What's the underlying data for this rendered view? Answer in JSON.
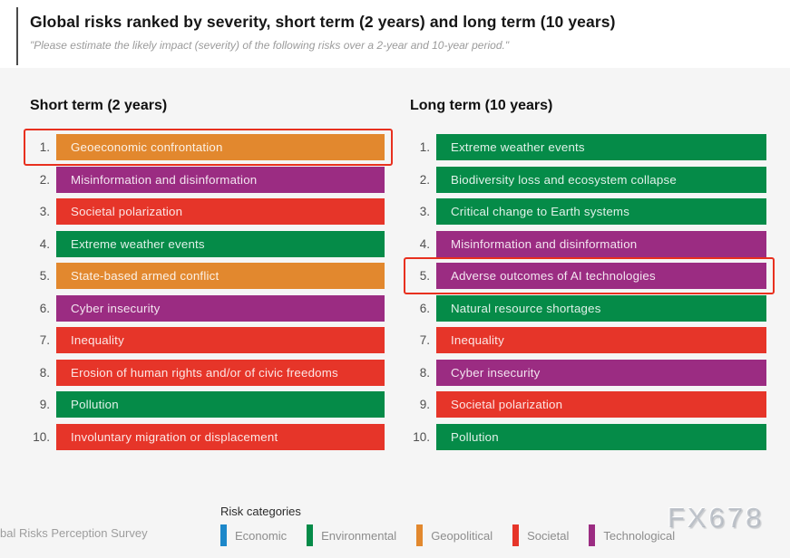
{
  "header": {
    "title": "Global risks ranked by severity, short term (2 years) and long term (10 years)",
    "subtitle": "\"Please estimate the likely impact (severity) of the following risks over a 2-year and 10-year period.\""
  },
  "colors": {
    "economic": "#1C87C9",
    "environmental": "#058B48",
    "geopolitical": "#E2882E",
    "societal": "#E63529",
    "technological": "#9B2C82",
    "highlight": "#E8301F",
    "panel_bg": "#F5F5F5"
  },
  "chart_data": {
    "type": "table",
    "title": "Global risks ranked by severity, short term (2 years) and long term (10 years)",
    "legend_position": "bottom",
    "columns": [
      {
        "title": "Short term (2 years)",
        "items": [
          {
            "rank": "1.",
            "label": "Geoeconomic confrontation",
            "category": "geopolitical",
            "highlighted": true
          },
          {
            "rank": "2.",
            "label": "Misinformation and disinformation",
            "category": "technological",
            "highlighted": false
          },
          {
            "rank": "3.",
            "label": "Societal polarization",
            "category": "societal",
            "highlighted": false
          },
          {
            "rank": "4.",
            "label": "Extreme weather events",
            "category": "environmental",
            "highlighted": false
          },
          {
            "rank": "5.",
            "label": "State-based armed conflict",
            "category": "geopolitical",
            "highlighted": false
          },
          {
            "rank": "6.",
            "label": "Cyber insecurity",
            "category": "technological",
            "highlighted": false
          },
          {
            "rank": "7.",
            "label": "Inequality",
            "category": "societal",
            "highlighted": false
          },
          {
            "rank": "8.",
            "label": "Erosion of human rights and/or of civic freedoms",
            "category": "societal",
            "highlighted": false
          },
          {
            "rank": "9.",
            "label": "Pollution",
            "category": "environmental",
            "highlighted": false
          },
          {
            "rank": "10.",
            "label": "Involuntary migration or displacement",
            "category": "societal",
            "highlighted": false
          }
        ]
      },
      {
        "title": "Long term (10 years)",
        "items": [
          {
            "rank": "1.",
            "label": "Extreme weather events",
            "category": "environmental",
            "highlighted": false
          },
          {
            "rank": "2.",
            "label": "Biodiversity loss and ecosystem collapse",
            "category": "environmental",
            "highlighted": false
          },
          {
            "rank": "3.",
            "label": "Critical change to Earth systems",
            "category": "environmental",
            "highlighted": false
          },
          {
            "rank": "4.",
            "label": "Misinformation and disinformation",
            "category": "technological",
            "highlighted": false
          },
          {
            "rank": "5.",
            "label": "Adverse outcomes of AI technologies",
            "category": "technological",
            "highlighted": true
          },
          {
            "rank": "6.",
            "label": "Natural resource shortages",
            "category": "environmental",
            "highlighted": false
          },
          {
            "rank": "7.",
            "label": "Inequality",
            "category": "societal",
            "highlighted": false
          },
          {
            "rank": "8.",
            "label": "Cyber insecurity",
            "category": "technological",
            "highlighted": false
          },
          {
            "rank": "9.",
            "label": "Societal polarization",
            "category": "societal",
            "highlighted": false
          },
          {
            "rank": "10.",
            "label": "Pollution",
            "category": "environmental",
            "highlighted": false
          }
        ]
      }
    ],
    "legend": {
      "title": "Risk categories",
      "entries": [
        {
          "label": "Economic",
          "category": "economic"
        },
        {
          "label": "Environmental",
          "category": "environmental"
        },
        {
          "label": "Geopolitical",
          "category": "geopolitical"
        },
        {
          "label": "Societal",
          "category": "societal"
        },
        {
          "label": "Technological",
          "category": "technological"
        }
      ]
    }
  },
  "footer": {
    "source_text": "bal Risks Perception Survey",
    "watermark": "FX678"
  }
}
